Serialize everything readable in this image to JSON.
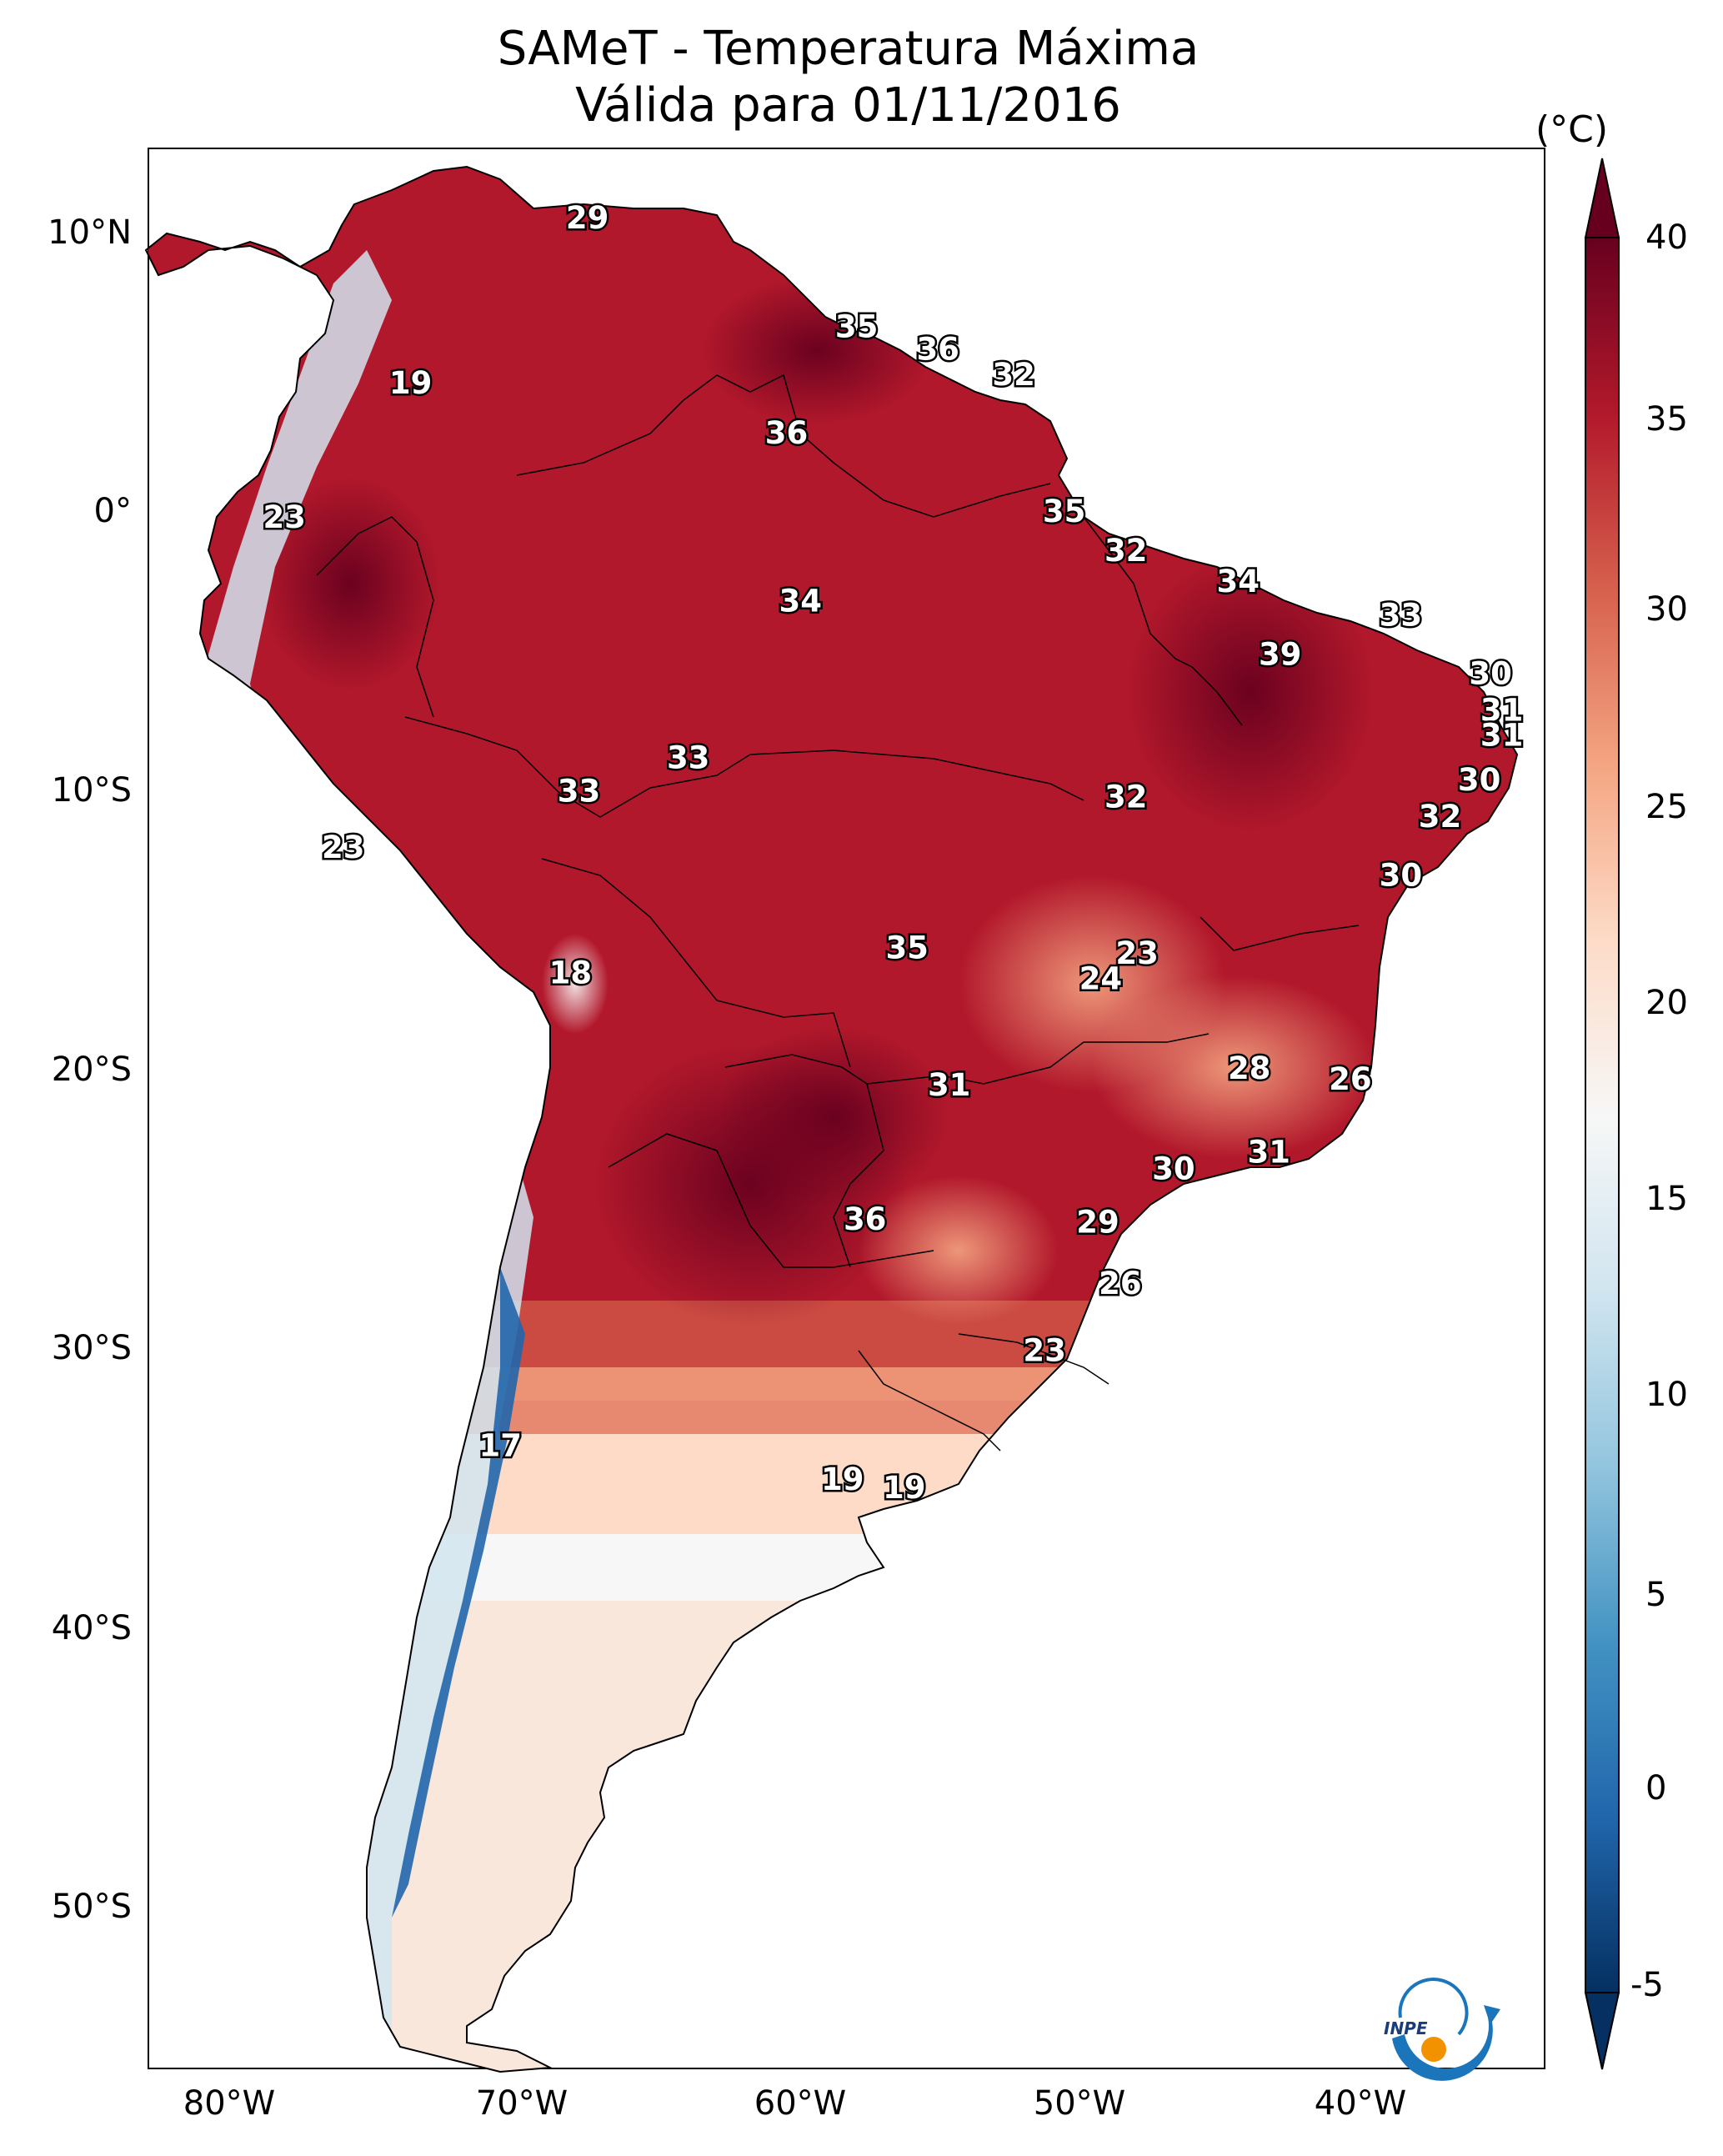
{
  "title": {
    "line1": "SAMeT - Temperatura Máxima",
    "line2": "Válida para 01/11/2016"
  },
  "axes": {
    "lat_ticks": [
      "10°N",
      "0°",
      "10°S",
      "20°S",
      "30°S",
      "40°S",
      "50°S"
    ],
    "lon_ticks": [
      "80°W",
      "70°W",
      "60°W",
      "50°W",
      "40°W"
    ],
    "lon_range": [
      -83,
      -34
    ],
    "lat_range": [
      13,
      -56
    ]
  },
  "colorbar": {
    "unit": "(°C)",
    "ticks": [
      "40",
      "35",
      "30",
      "25",
      "20",
      "15",
      "10",
      "5",
      "0",
      "-5"
    ],
    "range": [
      -5,
      40
    ],
    "colors": [
      "#053061",
      "#2166ac",
      "#4393c3",
      "#92c5de",
      "#d1e5f0",
      "#f7f7f7",
      "#fddbc7",
      "#f4a582",
      "#d6604d",
      "#b2182b",
      "#67001f"
    ]
  },
  "stations": [
    {
      "v": "29",
      "lon": -67.5,
      "lat": 10.5
    },
    {
      "v": "35",
      "lon": -57.9,
      "lat": 6.6
    },
    {
      "v": "36",
      "lon": -55.0,
      "lat": 5.8
    },
    {
      "v": "32",
      "lon": -52.3,
      "lat": 4.9
    },
    {
      "v": "19",
      "lon": -73.8,
      "lat": 4.6
    },
    {
      "v": "36",
      "lon": -60.4,
      "lat": 2.8
    },
    {
      "v": "23",
      "lon": -78.3,
      "lat": -0.2
    },
    {
      "v": "35",
      "lon": -50.5,
      "lat": 0.0
    },
    {
      "v": "32",
      "lon": -48.3,
      "lat": -1.4
    },
    {
      "v": "34",
      "lon": -59.9,
      "lat": -3.2
    },
    {
      "v": "34",
      "lon": -44.3,
      "lat": -2.5
    },
    {
      "v": "33",
      "lon": -38.5,
      "lat": -3.7
    },
    {
      "v": "39",
      "lon": -42.8,
      "lat": -5.1
    },
    {
      "v": "30",
      "lon": -35.3,
      "lat": -5.8
    },
    {
      "v": "31",
      "lon": -34.9,
      "lat": -7.1
    },
    {
      "v": "31",
      "lon": -34.9,
      "lat": -8.0
    },
    {
      "v": "33",
      "lon": -63.9,
      "lat": -8.8
    },
    {
      "v": "33",
      "lon": -67.8,
      "lat": -10.0
    },
    {
      "v": "32",
      "lon": -48.3,
      "lat": -10.2
    },
    {
      "v": "30",
      "lon": -35.7,
      "lat": -9.6
    },
    {
      "v": "32",
      "lon": -37.1,
      "lat": -10.9
    },
    {
      "v": "23",
      "lon": -76.2,
      "lat": -12.0
    },
    {
      "v": "30",
      "lon": -38.5,
      "lat": -13.0
    },
    {
      "v": "35",
      "lon": -56.1,
      "lat": -15.6
    },
    {
      "v": "23",
      "lon": -47.9,
      "lat": -15.8
    },
    {
      "v": "24",
      "lon": -49.2,
      "lat": -16.7
    },
    {
      "v": "18",
      "lon": -68.1,
      "lat": -16.5
    },
    {
      "v": "28",
      "lon": -43.9,
      "lat": -19.9
    },
    {
      "v": "26",
      "lon": -40.3,
      "lat": -20.3
    },
    {
      "v": "31",
      "lon": -54.6,
      "lat": -20.5
    },
    {
      "v": "31",
      "lon": -43.2,
      "lat": -22.9
    },
    {
      "v": "30",
      "lon": -46.6,
      "lat": -23.5
    },
    {
      "v": "36",
      "lon": -57.6,
      "lat": -25.3
    },
    {
      "v": "29",
      "lon": -49.3,
      "lat": -25.4
    },
    {
      "v": "26",
      "lon": -48.5,
      "lat": -27.6
    },
    {
      "v": "23",
      "lon": -51.2,
      "lat": -30.0
    },
    {
      "v": "17",
      "lon": -70.6,
      "lat": -33.4
    },
    {
      "v": "19",
      "lon": -58.4,
      "lat": -34.6
    },
    {
      "v": "19",
      "lon": -56.2,
      "lat": -34.9
    }
  ],
  "logo_text": "INPE"
}
